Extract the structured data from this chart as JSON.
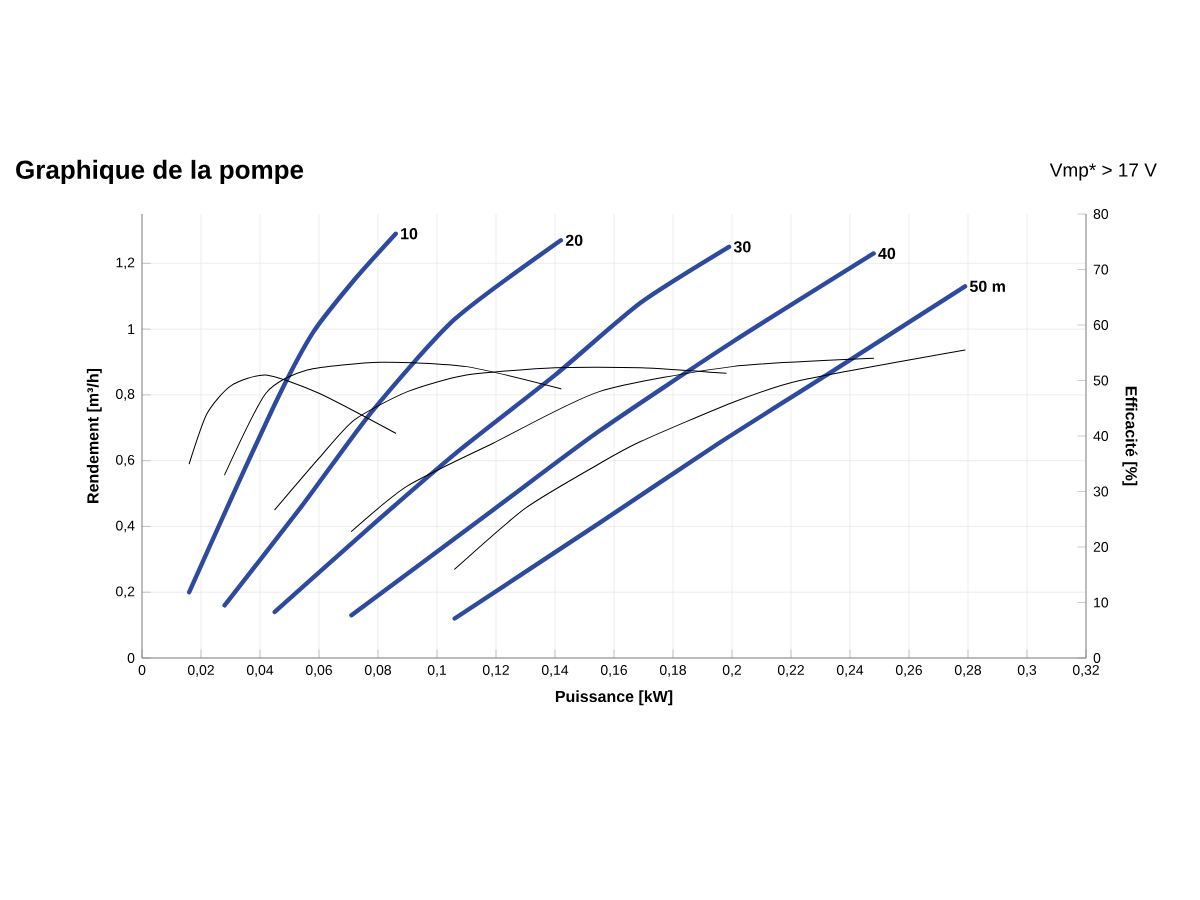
{
  "chart_data": {
    "type": "line",
    "title": "Graphique de la pompe",
    "annotations": [
      "Vmp* > 17 V"
    ],
    "xlabel": "Puissance [kW]",
    "ylabel": "Rendement [m³/h]",
    "y2label": "Efficacité [%]",
    "xlim": [
      0,
      0.32
    ],
    "ylim": [
      0,
      1.35
    ],
    "y2lim": [
      0,
      80
    ],
    "xticks": [
      0,
      {
        "value": 0.02,
        "label": "0,02"
      },
      {
        "value": 0.04,
        "label": "0,04"
      },
      {
        "value": 0.06,
        "label": "0,06"
      },
      {
        "value": 0.08,
        "label": "0,08"
      },
      {
        "value": 0.1,
        "label": "0,1"
      },
      {
        "value": 0.12,
        "label": "0,12"
      },
      {
        "value": 0.14,
        "label": "0,14"
      },
      {
        "value": 0.16,
        "label": "0,16"
      },
      {
        "value": 0.18,
        "label": "0,18"
      },
      {
        "value": 0.2,
        "label": "0,2"
      },
      {
        "value": 0.22,
        "label": "0,22"
      },
      {
        "value": 0.24,
        "label": "0,24"
      },
      {
        "value": 0.26,
        "label": "0,26"
      },
      {
        "value": 0.28,
        "label": "0,28"
      },
      {
        "value": 0.3,
        "label": "0,3"
      },
      {
        "value": 0.32,
        "label": "0,32"
      }
    ],
    "yticks": [
      0,
      {
        "value": 0.2,
        "label": "0,2"
      },
      {
        "value": 0.4,
        "label": "0,4"
      },
      {
        "value": 0.6,
        "label": "0,6"
      },
      {
        "value": 0.8,
        "label": "0,8"
      },
      1,
      {
        "value": 1.2,
        "label": "1,2"
      }
    ],
    "y2ticks": [
      0,
      10,
      20,
      30,
      40,
      50,
      60,
      70,
      80
    ],
    "grid": true,
    "marker": "none",
    "line_style": "solid",
    "series": [
      {
        "name": "10",
        "color": "#2e4a9e",
        "x": [
          0.016,
          0.029,
          0.046,
          0.058,
          0.072,
          0.086
        ],
        "values": [
          0.2,
          0.46,
          0.79,
          0.99,
          1.15,
          1.29
        ]
      },
      {
        "name": "20",
        "color": "#2e4a9e",
        "x": [
          0.028,
          0.054,
          0.078,
          0.106,
          0.142
        ],
        "values": [
          0.16,
          0.46,
          0.75,
          1.03,
          1.27
        ]
      },
      {
        "name": "30",
        "color": "#2e4a9e",
        "x": [
          0.045,
          0.075,
          0.106,
          0.14,
          0.169,
          0.199
        ],
        "values": [
          0.14,
          0.38,
          0.62,
          0.86,
          1.08,
          1.25
        ]
      },
      {
        "name": "40",
        "color": "#2e4a9e",
        "x": [
          0.071,
          0.119,
          0.155,
          0.2,
          0.248
        ],
        "values": [
          0.13,
          0.45,
          0.69,
          0.96,
          1.23
        ]
      },
      {
        "name": "50 m",
        "color": "#2e4a9e",
        "x": [
          0.106,
          0.155,
          0.195,
          0.232,
          0.279
        ],
        "values": [
          0.12,
          0.41,
          0.65,
          0.86,
          1.13
        ]
      },
      {
        "color": "#000000",
        "axis": "y2",
        "x": [
          0.016,
          0.022,
          0.03,
          0.042,
          0.06,
          0.086
        ],
        "values": [
          35,
          44,
          49,
          51,
          47.7,
          40.5
        ]
      },
      {
        "color": "#000000",
        "axis": "y2",
        "x": [
          0.028,
          0.042,
          0.056,
          0.081,
          0.11,
          0.142
        ],
        "values": [
          33,
          47.7,
          51.9,
          53.3,
          52.5,
          48.5
        ]
      },
      {
        "color": "#000000",
        "axis": "y2",
        "x": [
          0.045,
          0.06,
          0.072,
          0.09,
          0.11,
          0.14,
          0.169,
          0.198
        ],
        "values": [
          26.7,
          36,
          42.9,
          48,
          51,
          52.3,
          52.3,
          51.3
        ]
      },
      {
        "color": "#000000",
        "axis": "y2",
        "x": [
          0.071,
          0.09,
          0.119,
          0.155,
          0.2,
          0.248
        ],
        "values": [
          22.8,
          31,
          38.7,
          48,
          52.5,
          54
        ]
      },
      {
        "color": "#000000",
        "axis": "y2",
        "x": [
          0.106,
          0.13,
          0.155,
          0.169,
          0.2,
          0.223,
          0.279
        ],
        "values": [
          16,
          27,
          35,
          39,
          46,
          50,
          55.5
        ]
      }
    ]
  }
}
